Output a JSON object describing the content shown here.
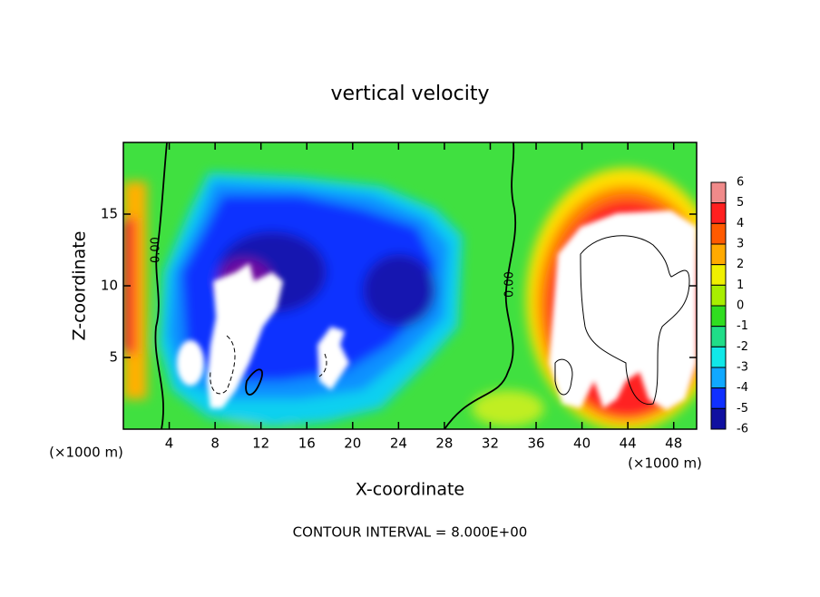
{
  "chart_data": {
    "type": "contour",
    "title": "vertical velocity",
    "xlabel": "X-coordinate",
    "ylabel": "Z-coordinate",
    "x_unit": "(×1000 m)",
    "y_unit": "(×1000 m)",
    "footer": "CONTOUR INTERVAL = 8.000E+00",
    "contour_labels": [
      "0.00",
      "0.00"
    ],
    "xlim": [
      0,
      50
    ],
    "xticks": [
      4,
      8,
      12,
      16,
      20,
      24,
      28,
      32,
      36,
      40,
      44,
      48
    ],
    "ylim": [
      0,
      20
    ],
    "yticks": [
      5,
      10,
      15
    ],
    "colorbar": {
      "ticks": [
        6,
        5,
        4,
        3,
        2,
        1,
        0,
        -1,
        -2,
        -3,
        -4,
        -5,
        -6
      ],
      "colors": [
        "#f08a8a",
        "#ff2020",
        "#ff5a00",
        "#ffaa00",
        "#f0f000",
        "#a8ee00",
        "#30dd20",
        "#20dd88",
        "#10e8e8",
        "#10a8ff",
        "#1030ff",
        "#1010a0"
      ]
    }
  }
}
